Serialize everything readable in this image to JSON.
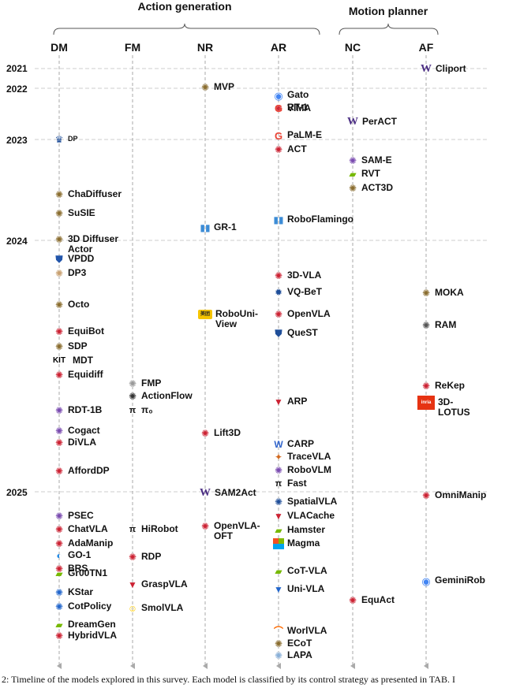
{
  "groups": {
    "action_generation": "Action generation",
    "motion_planner": "Motion planner"
  },
  "columns": {
    "DM": "DM",
    "FM": "FM",
    "NR": "NR",
    "AR": "AR",
    "NC": "NC",
    "AF": "AF"
  },
  "years": [
    "2021",
    "2022",
    "2023",
    "2024",
    "2025"
  ],
  "caption": "2: Timeline of the models explored in this survey. Each model is classified by its control strategy as presented in TAB. I",
  "colors": {
    "guide": "#aaaaaa",
    "year_line": "#cccccc",
    "purple": "#4b2e83",
    "google_blue": "#4285f4",
    "red": "#cc2233"
  },
  "models": [
    {
      "col": "AF",
      "label": "Cliport",
      "icon": "uw-logo",
      "color": "#4b2e83",
      "mark": "W"
    },
    {
      "col": "NR",
      "label": "MVP",
      "icon": "seal-icon",
      "color": "#8a6d2f",
      "mark": "✺"
    },
    {
      "col": "AR",
      "label": "Gato",
      "icon": "deepmind-icon",
      "color": "#4285f4",
      "mark": "◉"
    },
    {
      "col": "AR",
      "label": "VIMA",
      "icon": "seal-icon",
      "color": "#cc2233",
      "mark": "✺"
    },
    {
      "col": "AR",
      "label": "RT-1",
      "icon": "google-icon",
      "color": "#ea4335",
      "mark": "G"
    },
    {
      "col": "NC",
      "label": "PerACT",
      "icon": "uw-logo",
      "color": "#4b2e83",
      "mark": "W"
    },
    {
      "col": "DM",
      "label": "DP",
      "icon": "columbia-icon",
      "color": "#1f4e99",
      "mark": "♛",
      "small": true
    },
    {
      "col": "AR",
      "label": "PaLM-E",
      "icon": "google-icon",
      "color": "#ea4335",
      "mark": "G"
    },
    {
      "col": "AR",
      "label": "ACT",
      "icon": "seal-icon",
      "color": "#cc2233",
      "mark": "✺"
    },
    {
      "col": "NC",
      "label": "SAM-E",
      "icon": "seal-icon",
      "color": "#7a4bb0",
      "mark": "✺"
    },
    {
      "col": "NC",
      "label": "RVT",
      "icon": "nvidia-icon",
      "color": "#76b900",
      "mark": "▰"
    },
    {
      "col": "NC",
      "label": "ACT3D",
      "icon": "seal-icon",
      "color": "#8a6d2f",
      "mark": "✺"
    },
    {
      "col": "DM",
      "label": "ChaDiffuser",
      "icon": "seal-icon",
      "color": "#8a6d2f",
      "mark": "✺"
    },
    {
      "col": "DM",
      "label": "SuSIE",
      "icon": "seal-icon",
      "color": "#8a6d2f",
      "mark": "✺"
    },
    {
      "col": "AR",
      "label": "RoboFlamingo",
      "icon": "bytedance-icon",
      "color": "#3c8cd6",
      "mark": "▮▮"
    },
    {
      "col": "NR",
      "label": "GR-1",
      "icon": "bytedance-icon",
      "color": "#3c8cd6",
      "mark": "▮▮"
    },
    {
      "col": "DM",
      "label": "3D Diffuser\nActor",
      "icon": "seal-icon",
      "color": "#8a6d2f",
      "mark": "✺"
    },
    {
      "col": "DM",
      "label": "VPDD",
      "icon": "shield-icon",
      "color": "#2255aa",
      "mark": "⛊"
    },
    {
      "col": "DM",
      "label": "DP3",
      "icon": "seal-icon",
      "color": "#c8a070",
      "mark": "✺"
    },
    {
      "col": "AR",
      "label": "3D-VLA",
      "icon": "seal-icon",
      "color": "#cc2233",
      "mark": "✺"
    },
    {
      "col": "AR",
      "label": "VQ-BeT",
      "icon": "nyu-icon",
      "color": "#1f4e99",
      "mark": "✹"
    },
    {
      "col": "AF",
      "label": "MOKA",
      "icon": "seal-icon",
      "color": "#8a6d2f",
      "mark": "✺"
    },
    {
      "col": "DM",
      "label": "Octo",
      "icon": "seal-icon",
      "color": "#8a6d2f",
      "mark": "✺"
    },
    {
      "col": "NR",
      "label": "RoboUni-\nView",
      "icon": "meituan-icon",
      "color": "#f5c400",
      "mark": "美团"
    },
    {
      "col": "AR",
      "label": "OpenVLA",
      "icon": "seal-icon",
      "color": "#cc2233",
      "mark": "✺"
    },
    {
      "col": "AF",
      "label": "RAM",
      "icon": "seal-icon",
      "color": "#555555",
      "mark": "✺"
    },
    {
      "col": "AR",
      "label": "QueST",
      "icon": "shield-icon",
      "color": "#1f4e99",
      "mark": "⛊"
    },
    {
      "col": "DM",
      "label": "EquiBot",
      "icon": "seal-icon",
      "color": "#cc2233",
      "mark": "✺"
    },
    {
      "col": "DM",
      "label": "SDP",
      "icon": "seal-icon",
      "color": "#8a6d2f",
      "mark": "✺"
    },
    {
      "col": "DM",
      "label": "MDT",
      "icon": "kit-logo",
      "color": "#009682",
      "mark": "KIT"
    },
    {
      "col": "DM",
      "label": "Equidiff",
      "icon": "seal-icon",
      "color": "#cc2233",
      "mark": "✺"
    },
    {
      "col": "FM",
      "label": "FMP",
      "icon": "seal-icon",
      "color": "#999999",
      "mark": "✺"
    },
    {
      "col": "FM",
      "label": "ActionFlow",
      "icon": "seal-icon",
      "color": "#333333",
      "mark": "✺"
    },
    {
      "col": "AF",
      "label": "ReKep",
      "icon": "seal-icon",
      "color": "#cc2233",
      "mark": "✺"
    },
    {
      "col": "AF",
      "label": "3D-\nLOTUS",
      "icon": "inria-icon",
      "color": "#e63312",
      "mark": "inria"
    },
    {
      "col": "FM",
      "label": "π₀",
      "icon": "pi-icon",
      "color": "#111111",
      "mark": "π"
    },
    {
      "col": "AR",
      "label": "ARP",
      "icon": "bookmark-icon",
      "color": "#cc2233",
      "mark": "▼"
    },
    {
      "col": "DM",
      "label": "RDT-1B",
      "icon": "seal-icon",
      "color": "#7a4bb0",
      "mark": "✺"
    },
    {
      "col": "DM",
      "label": "Cogact",
      "icon": "seal-icon",
      "color": "#7a4bb0",
      "mark": "✺"
    },
    {
      "col": "NR",
      "label": "Lift3D",
      "icon": "seal-icon",
      "color": "#cc2233",
      "mark": "✺"
    },
    {
      "col": "DM",
      "label": "DiVLA",
      "icon": "seal-icon",
      "color": "#cc2233",
      "mark": "✺"
    },
    {
      "col": "AR",
      "label": "CARP",
      "icon": "shield-icon",
      "color": "#3366cc",
      "mark": "W"
    },
    {
      "col": "AR",
      "label": "TraceVLA",
      "icon": "seal-icon",
      "color": "#d2691e",
      "mark": "✦"
    },
    {
      "col": "AR",
      "label": "RoboVLM",
      "icon": "seal-icon",
      "color": "#7a4bb0",
      "mark": "✺"
    },
    {
      "col": "DM",
      "label": "AffordDP",
      "icon": "seal-icon",
      "color": "#cc2233",
      "mark": "✺"
    },
    {
      "col": "AR",
      "label": "Fast",
      "icon": "pi-icon",
      "color": "#111111",
      "mark": "π"
    },
    {
      "col": "NR",
      "label": "SAM2Act",
      "icon": "uw-logo",
      "color": "#4b2e83",
      "mark": "W"
    },
    {
      "col": "AF",
      "label": "OmniManip",
      "icon": "seal-icon",
      "color": "#cc2233",
      "mark": "✺"
    },
    {
      "col": "AR",
      "label": "SpatialVLA",
      "icon": "seal-icon",
      "color": "#1f4e99",
      "mark": "✺"
    },
    {
      "col": "DM",
      "label": "PSEC",
      "icon": "seal-icon",
      "color": "#7a4bb0",
      "mark": "✺"
    },
    {
      "col": "AR",
      "label": "VLACache",
      "icon": "bookmark-icon",
      "color": "#cc2233",
      "mark": "▼"
    },
    {
      "col": "DM",
      "label": "ChatVLA",
      "icon": "seal-icon",
      "color": "#cc2233",
      "mark": "✺"
    },
    {
      "col": "FM",
      "label": "HiRobot",
      "icon": "pi-icon",
      "color": "#111111",
      "mark": "π"
    },
    {
      "col": "NR",
      "label": "OpenVLA-\nOFT",
      "icon": "seal-icon",
      "color": "#cc2233",
      "mark": "✺"
    },
    {
      "col": "AR",
      "label": "Hamster",
      "icon": "nvidia-icon",
      "color": "#76b900",
      "mark": "▰"
    },
    {
      "col": "AR",
      "label": "Magma",
      "icon": "microsoft-icon",
      "color": "#f25022",
      "mark": "▦"
    },
    {
      "col": "DM",
      "label": "AdaManip",
      "icon": "seal-icon",
      "color": "#cc2233",
      "mark": "✺"
    },
    {
      "col": "DM",
      "label": "GO-1",
      "icon": "agibot-icon",
      "color": "#1e88e5",
      "mark": "◐"
    },
    {
      "col": "FM",
      "label": "RDP",
      "icon": "seal-icon",
      "color": "#cc2233",
      "mark": "✺"
    },
    {
      "col": "DM",
      "label": "BRS",
      "icon": "seal-icon",
      "color": "#cc2233",
      "mark": "✺"
    },
    {
      "col": "AR",
      "label": "CoT-VLA",
      "icon": "nvidia-icon",
      "color": "#76b900",
      "mark": "▰"
    },
    {
      "col": "AF",
      "label": "GeminiRob",
      "icon": "deepmind-icon",
      "color": "#4285f4",
      "mark": "◉"
    },
    {
      "col": "DM",
      "label": "Gr00TN1",
      "icon": "nvidia-icon",
      "color": "#76b900",
      "mark": "▰"
    },
    {
      "col": "FM",
      "label": "GraspVLA",
      "icon": "bookmark-icon",
      "color": "#cc2233",
      "mark": "▼"
    },
    {
      "col": "AR",
      "label": "Uni-VLA",
      "icon": "bookmark-icon",
      "color": "#2266cc",
      "mark": "▼"
    },
    {
      "col": "DM",
      "label": "KStar",
      "icon": "seal-icon",
      "color": "#2266cc",
      "mark": "✺"
    },
    {
      "col": "NC",
      "label": "EquAct",
      "icon": "seal-icon",
      "color": "#cc2233",
      "mark": "✺"
    },
    {
      "col": "DM",
      "label": "CotPolicy",
      "icon": "seal-icon",
      "color": "#2266cc",
      "mark": "✺"
    },
    {
      "col": "FM",
      "label": "SmolVLA",
      "icon": "hf-icon",
      "color": "#ffcc00",
      "mark": "☺"
    },
    {
      "col": "DM",
      "label": "DreamGen",
      "icon": "nvidia-icon",
      "color": "#76b900",
      "mark": "▰"
    },
    {
      "col": "DM",
      "label": "HybridVLA",
      "icon": "seal-icon",
      "color": "#cc2233",
      "mark": "✺"
    },
    {
      "col": "AR",
      "label": "WorlVLA",
      "icon": "alibaba-icon",
      "color": "#ff6a00",
      "mark": "⌒"
    },
    {
      "col": "AR",
      "label": "ECoT",
      "icon": "seal-icon",
      "color": "#8a6d2f",
      "mark": "✺"
    },
    {
      "col": "AR",
      "label": "LAPA",
      "icon": "seal-icon",
      "color": "#8ab0d8",
      "mark": "✺"
    }
  ]
}
